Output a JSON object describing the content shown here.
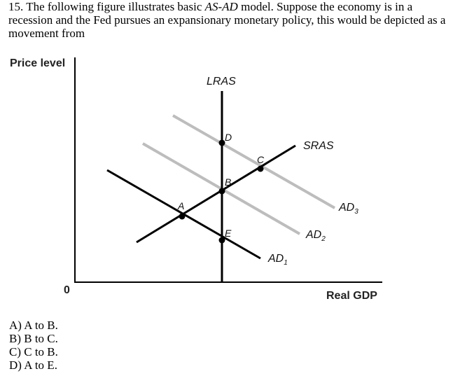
{
  "question": {
    "number": "15.",
    "text_before": "The following figure illustrates basic ",
    "model_italic": "AS-AD",
    "text_after": " model. Suppose the economy is in a recession and the Fed pursues an expansionary monetary policy, this would be depicted as a movement from"
  },
  "figure": {
    "y_axis_label": "Price level",
    "x_axis_label": "Real GDP",
    "origin_label": "0",
    "curves": {
      "lras": "LRAS",
      "sras": "SRAS",
      "ad1": "AD",
      "ad1_sub": "1",
      "ad2": "AD",
      "ad2_sub": "2",
      "ad3": "AD",
      "ad3_sub": "3"
    },
    "points": {
      "a": "A",
      "b": "B",
      "c": "C",
      "d": "D",
      "e": "E"
    },
    "colors": {
      "axis": "#000000",
      "black_curves": "#000000",
      "shifted_ad": "#bdbdbd"
    }
  },
  "choices": [
    "A) A to B.",
    "B) B to C.",
    "C) C to B.",
    "D) A to E."
  ]
}
